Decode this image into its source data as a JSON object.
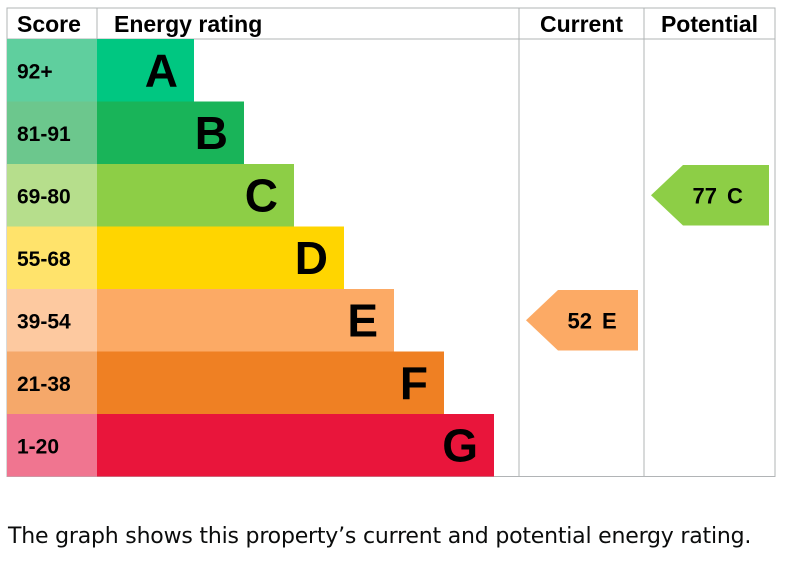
{
  "chart_data": {
    "type": "bar",
    "headers": {
      "score": "Score",
      "rating": "Energy rating",
      "current": "Current",
      "potential": "Potential"
    },
    "bands": [
      {
        "score": "92+",
        "letter": "A",
        "color": "#00c781",
        "score_bg": "#5fcf9e"
      },
      {
        "score": "81-91",
        "letter": "B",
        "color": "#19b459",
        "score_bg": "#6cc78d"
      },
      {
        "score": "69-80",
        "letter": "C",
        "color": "#8dce46",
        "score_bg": "#b6de8c"
      },
      {
        "score": "55-68",
        "letter": "D",
        "color": "#ffd500",
        "score_bg": "#ffe36b"
      },
      {
        "score": "39-54",
        "letter": "E",
        "color": "#fcaa65",
        "score_bg": "#fdc9a0"
      },
      {
        "score": "21-38",
        "letter": "F",
        "color": "#ef8023",
        "score_bg": "#f5a86a"
      },
      {
        "score": "1-20",
        "letter": "G",
        "color": "#e9153b",
        "score_bg": "#f07590"
      }
    ],
    "current": {
      "value": 52,
      "letter": "E",
      "color": "#fcaa65"
    },
    "potential": {
      "value": 77,
      "letter": "C",
      "color": "#8dce46"
    }
  },
  "caption": "The graph shows this property’s current and potential energy rating."
}
